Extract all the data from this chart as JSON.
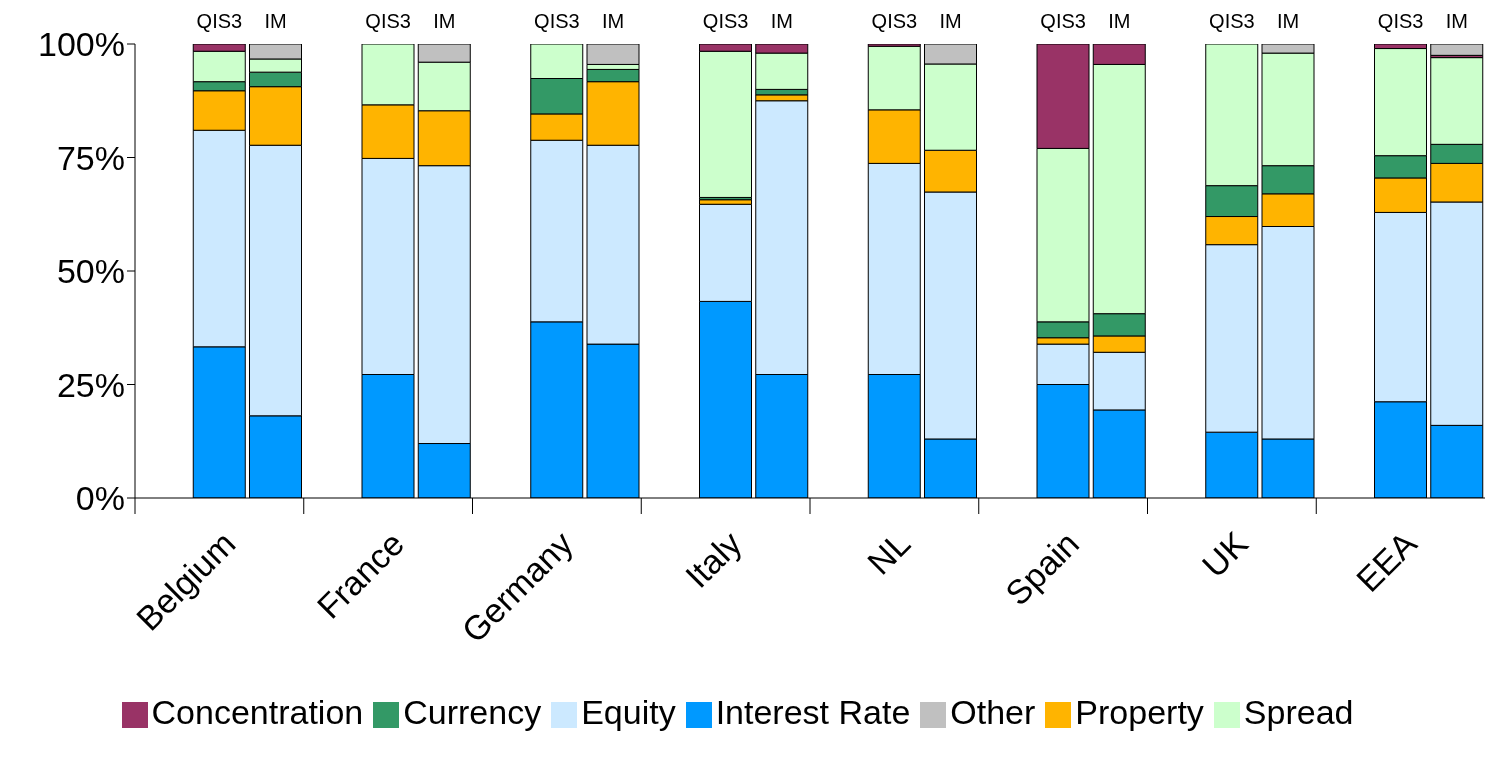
{
  "chart_data": {
    "type": "bar",
    "stacked": true,
    "categories": [
      null,
      "QIS3",
      "IM",
      null,
      "QIS3",
      "IM",
      null,
      "QIS3",
      "IM",
      null,
      "QIS3",
      "IM",
      null,
      "QIS3",
      "IM",
      null,
      "QIS3",
      "IM",
      null,
      "QIS3",
      "IM",
      null,
      "QIS3",
      "IM"
    ],
    "annotations": [
      "Belgium",
      "France",
      "Germany",
      "Italy",
      "NL",
      "Spain",
      "UK",
      "EEA"
    ],
    "ylim": [
      0,
      100
    ],
    "yticks": [
      {
        "value": 0,
        "label": "0%"
      },
      {
        "value": 25,
        "label": "25%"
      },
      {
        "value": 50,
        "label": "50%"
      },
      {
        "value": 75,
        "label": "75%"
      },
      {
        "value": 100,
        "label": "100%"
      }
    ],
    "grid": false,
    "legend": "bottom",
    "series": [
      {
        "name": "Interest Rate",
        "color": "#0099ff",
        "values": [
          null,
          33.3,
          18.1,
          null,
          27.2,
          12,
          null,
          38.8,
          33.9,
          null,
          43.3,
          27.2,
          null,
          27.2,
          13,
          null,
          25,
          19.4,
          null,
          14.5,
          13,
          null,
          21.2,
          16
        ]
      },
      {
        "name": "Equity",
        "color": "#cce9ff",
        "values": [
          null,
          47.7,
          59.6,
          null,
          47.6,
          61.2,
          null,
          40,
          43.8,
          null,
          21.4,
          60.3,
          null,
          46.5,
          54.4,
          null,
          8.9,
          12.7,
          null,
          41.3,
          46.8,
          null,
          41.7,
          49.2
        ]
      },
      {
        "name": "Property",
        "color": "#ffb400",
        "values": [
          null,
          8.7,
          12.9,
          null,
          11.8,
          12.1,
          null,
          5.8,
          14,
          null,
          1,
          1.3,
          null,
          11.8,
          9.2,
          null,
          1.4,
          3.6,
          null,
          6.2,
          7.2,
          null,
          7.6,
          8.5
        ]
      },
      {
        "name": "Currency",
        "color": "#339966",
        "values": [
          null,
          2,
          3.2,
          null,
          0,
          0,
          null,
          7.8,
          2.7,
          null,
          0.5,
          1.2,
          null,
          0,
          0,
          null,
          3.5,
          4.9,
          null,
          6.8,
          6.2,
          null,
          4.9,
          4.2
        ]
      },
      {
        "name": "Spread",
        "color": "#ccffcc",
        "values": [
          null,
          6.7,
          2.9,
          null,
          13.4,
          10.7,
          null,
          7.6,
          1.1,
          null,
          32.2,
          8,
          null,
          14,
          19,
          null,
          38.2,
          54.9,
          null,
          31.2,
          24.8,
          null,
          23.6,
          19.1
        ]
      },
      {
        "name": "Concentration",
        "color": "#993366",
        "values": [
          null,
          1.6,
          0,
          null,
          0,
          0,
          null,
          0,
          0,
          null,
          1.6,
          2,
          null,
          0.5,
          0,
          null,
          23,
          4.5,
          null,
          0,
          0,
          null,
          1,
          0.5
        ]
      },
      {
        "name": "Other",
        "color": "#c0c0c0",
        "values": [
          null,
          0,
          3.3,
          null,
          0,
          4,
          null,
          0,
          4.5,
          null,
          0,
          0,
          null,
          0,
          4.4,
          null,
          0,
          0,
          null,
          0,
          2,
          null,
          0,
          2.5
        ]
      }
    ]
  }
}
